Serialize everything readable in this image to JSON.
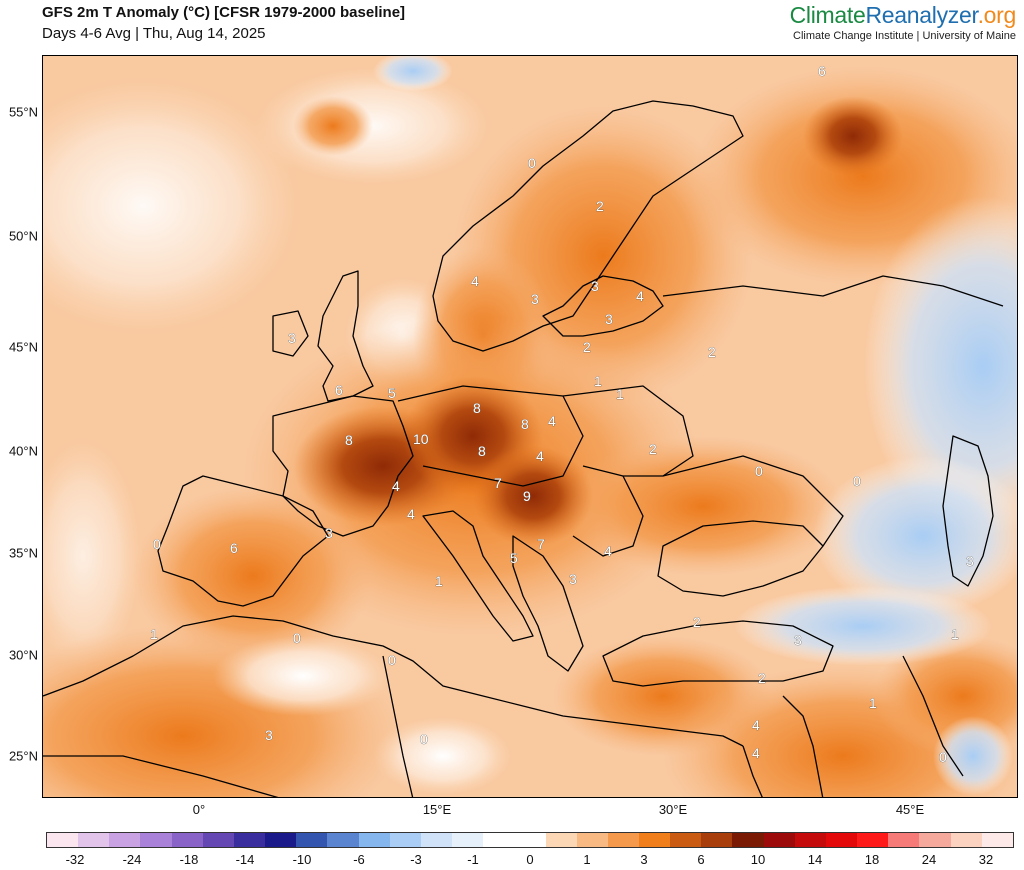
{
  "header": {
    "title": "GFS 2m T Anomaly (°C) [CFSR 1979-2000 baseline]",
    "subtitle": "Days 4-6 Avg | Thu, Aug 14, 2025"
  },
  "brand": {
    "part1": "Climate",
    "part2": "Reanalyzer",
    "part3": ".org",
    "tagline": "Climate Change Institute | University of Maine"
  },
  "axes": {
    "lat_labels": [
      "55°N",
      "50°N",
      "45°N",
      "40°N",
      "35°N",
      "30°N",
      "25°N"
    ],
    "lon_labels": [
      "0°",
      "15°E",
      "30°E",
      "45°E"
    ]
  },
  "colorbar": {
    "colors": [
      "#fbe6f0",
      "#e2c3ea",
      "#c9a2e4",
      "#aa81d8",
      "#8a63c8",
      "#6447b3",
      "#3a2e9e",
      "#1a1a8a",
      "#3355b0",
      "#5a84d0",
      "#86b6ee",
      "#a9cdf4",
      "#cfe2f8",
      "#e6f0fb",
      "#ffffff",
      "#ffffff",
      "#fbd7b6",
      "#f8b982",
      "#f59a4c",
      "#f07e1a",
      "#c95a12",
      "#a83e0c",
      "#7a1a05",
      "#9c0a0a",
      "#c40a0a",
      "#e3080a",
      "#ff1a1a",
      "#f57a78",
      "#f5a89c",
      "#fbd2c0",
      "#fdeae8"
    ],
    "labels": [
      "-32",
      "-24",
      "-18",
      "-14",
      "-10",
      "-6",
      "-3",
      "-1",
      "0",
      "1",
      "3",
      "6",
      "10",
      "14",
      "18",
      "24",
      "32"
    ]
  },
  "contour_labels": [
    "6",
    "2",
    "4",
    "3",
    "3",
    "3",
    "2",
    "1",
    "1",
    "2",
    "0",
    "0",
    "0",
    "3",
    "1",
    "4",
    "3",
    "6",
    "5",
    "8",
    "8",
    "4",
    "8",
    "10",
    "8",
    "4",
    "7",
    "9",
    "4",
    "4",
    "3",
    "6",
    "0",
    "1",
    "0",
    "1",
    "0",
    "3",
    "0",
    "5",
    "7",
    "3",
    "4",
    "2",
    "3",
    "2",
    "1",
    "4",
    "4",
    "0",
    "3",
    "0",
    "2"
  ]
}
